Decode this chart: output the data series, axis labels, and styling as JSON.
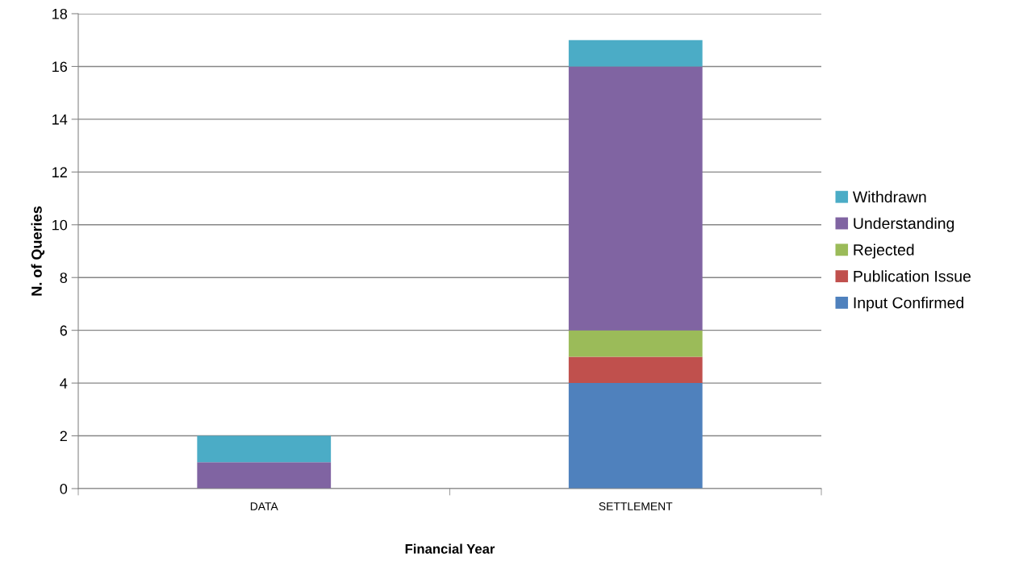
{
  "chart_data": {
    "type": "bar",
    "stacked": true,
    "xlabel": "Financial Year",
    "ylabel": "N. of Queries",
    "categories": [
      "DATA",
      "SETTLEMENT"
    ],
    "series": [
      {
        "name": "Input Confirmed",
        "color": "#4f81bd",
        "values": [
          0,
          4
        ]
      },
      {
        "name": "Publication Issue",
        "color": "#c0504d",
        "values": [
          0,
          1
        ]
      },
      {
        "name": "Rejected",
        "color": "#9bbb59",
        "values": [
          0,
          1
        ]
      },
      {
        "name": "Understanding",
        "color": "#8064a2",
        "values": [
          1,
          10
        ]
      },
      {
        "name": "Withdrawn",
        "color": "#4bacc6",
        "values": [
          1,
          1
        ]
      }
    ],
    "ylim": [
      0,
      18
    ],
    "yticks": [
      0,
      2,
      4,
      6,
      8,
      10,
      12,
      14,
      16,
      18
    ],
    "grid": "y",
    "legend": "right"
  }
}
